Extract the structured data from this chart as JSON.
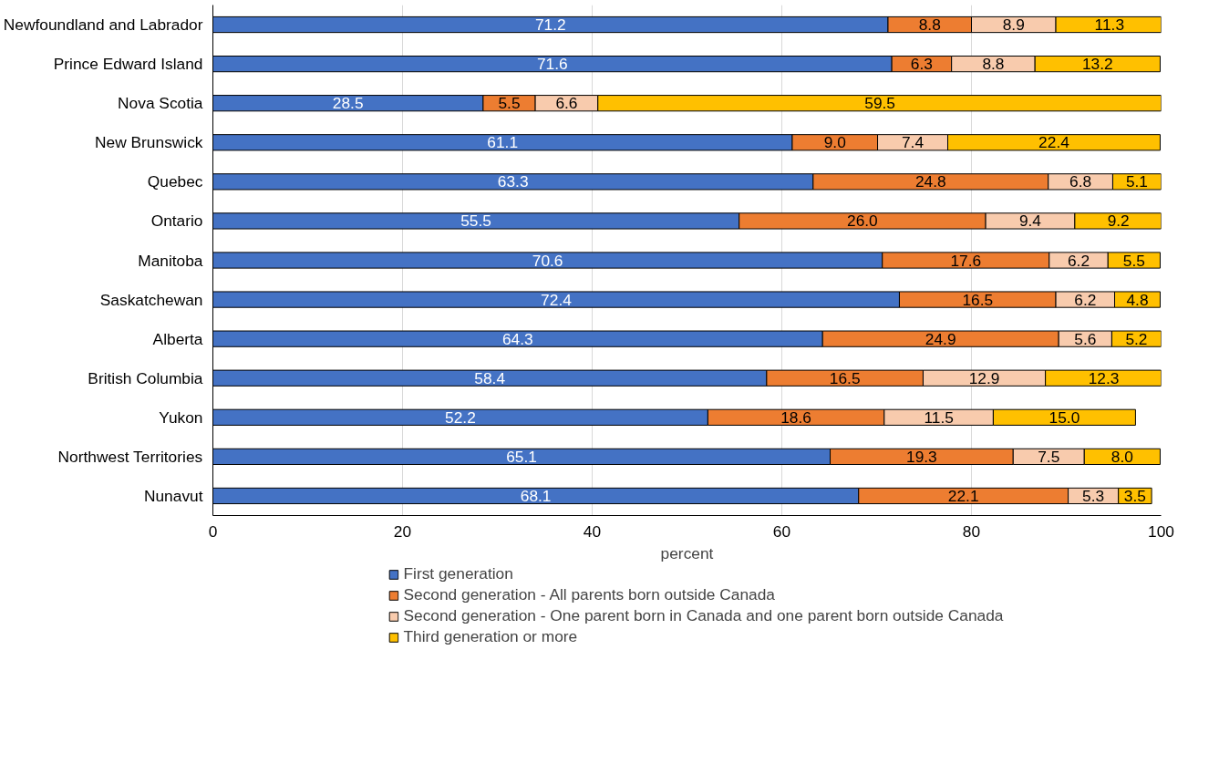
{
  "chart_data": {
    "type": "bar",
    "orientation": "horizontal",
    "stacked": true,
    "xlabel": "percent",
    "xlim": [
      0,
      100
    ],
    "xticks": [
      0,
      20,
      40,
      60,
      80,
      100
    ],
    "grid": "x",
    "legend": "bottom",
    "categories": [
      "Newfoundland and Labrador",
      "Prince Edward Island",
      "Nova Scotia",
      "New Brunswick",
      "Quebec",
      "Ontario",
      "Manitoba",
      "Saskatchewan",
      "Alberta",
      "British Columbia",
      "Yukon",
      "Northwest Territories",
      "Nunavut"
    ],
    "series": [
      {
        "name": "First generation",
        "color": "#4472c4",
        "values": [
          71.2,
          71.6,
          28.5,
          61.1,
          63.3,
          55.5,
          70.6,
          72.4,
          64.3,
          58.4,
          52.2,
          65.1,
          68.1
        ],
        "value_labels": [
          "71.2",
          "71.6",
          "28.5",
          "61.1",
          "63.3",
          "55.5",
          "70.6",
          "72.4",
          "64.3",
          "58.4",
          "52.2",
          "65.1",
          "68.1"
        ]
      },
      {
        "name": "Second generation - All parents born outside Canada",
        "color": "#ed7d31",
        "values": [
          8.8,
          6.3,
          5.5,
          9.0,
          24.8,
          26.0,
          17.6,
          16.5,
          24.9,
          16.5,
          18.6,
          19.3,
          22.1
        ],
        "value_labels": [
          "8.8",
          "6.3",
          "5.5",
          "9.0",
          "24.8",
          "26.0",
          "17.6",
          "16.5",
          "24.9",
          "16.5",
          "18.6",
          "19.3",
          "22.1"
        ]
      },
      {
        "name": "Second generation - One parent born in Canada and one parent born outside Canada",
        "color": "#f8cbad",
        "values": [
          8.9,
          8.8,
          6.6,
          7.4,
          6.8,
          9.4,
          6.2,
          6.2,
          5.6,
          12.9,
          11.5,
          7.5,
          5.3
        ],
        "value_labels": [
          "8.9",
          "8.8",
          "6.6",
          "7.4",
          "6.8",
          "9.4",
          "6.2",
          "6.2",
          "5.6",
          "12.9",
          "11.5",
          "7.5",
          "5.3"
        ]
      },
      {
        "name": "Third generation or more",
        "color": "#ffc000",
        "values": [
          11.3,
          13.2,
          59.5,
          22.4,
          5.1,
          9.2,
          5.5,
          4.8,
          5.2,
          12.3,
          15.0,
          8.0,
          3.5
        ],
        "value_labels": [
          "11.3",
          "13.2",
          "59.5",
          "22.4",
          "5.1",
          "9.2",
          "5.5",
          "4.8",
          "5.2",
          "12.3",
          "15.0",
          "8.0",
          "3.5"
        ]
      }
    ]
  }
}
